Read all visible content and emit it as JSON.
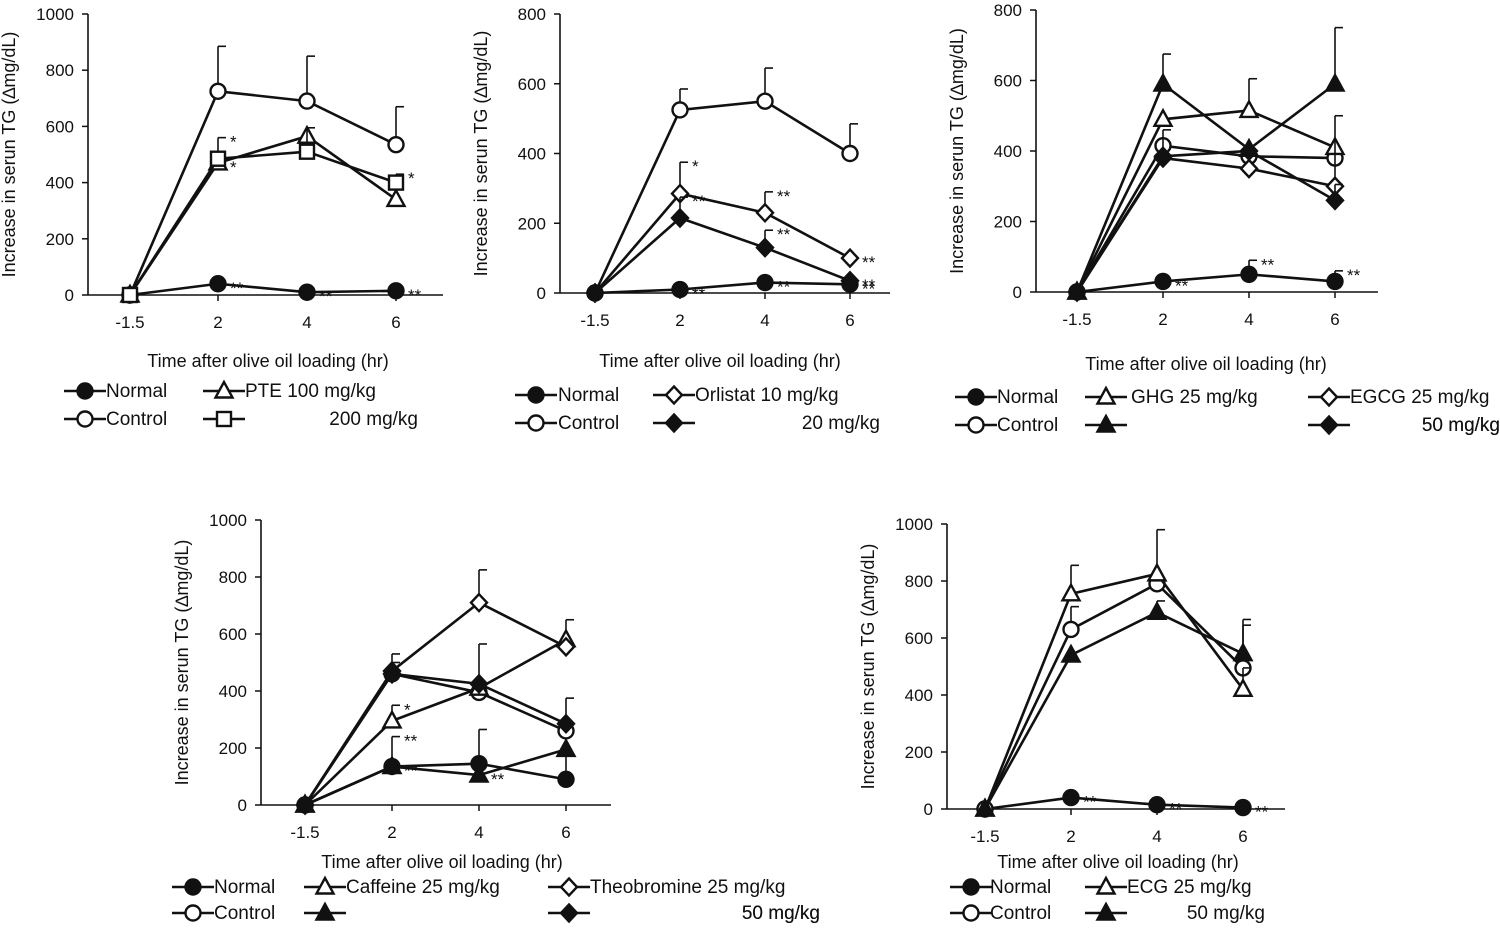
{
  "figure_title": "",
  "chart_data": [
    {
      "type": "line",
      "xlabel": "Time after olive oil loading (hr)",
      "ylabel": "Increase in serun TG (∆mg/dL)",
      "x_ticks": [
        "-1.5",
        "2",
        "4",
        "6"
      ],
      "y_ticks": [
        "0",
        "200",
        "400",
        "600",
        "800",
        "1000"
      ],
      "ylim": [
        0,
        1000
      ],
      "series": [
        {
          "name": "Normal",
          "marker": "filled-circle",
          "values": [
            0,
            40,
            10,
            15
          ],
          "errors": [
            0,
            0,
            0,
            0
          ],
          "sig": [
            "",
            "**",
            "**",
            "**"
          ]
        },
        {
          "name": "Control",
          "marker": "open-circle",
          "values": [
            0,
            725,
            690,
            535
          ],
          "errors": [
            0,
            160,
            160,
            135
          ],
          "sig": [
            "",
            "",
            "",
            ""
          ]
        },
        {
          "name": "PTE  100  mg/kg",
          "marker": "open-triangle",
          "values": [
            0,
            470,
            565,
            340
          ],
          "errors": [
            0,
            0,
            0,
            90
          ],
          "sig": [
            "",
            "*",
            "",
            "*"
          ]
        },
        {
          "name": "200 mg/kg",
          "marker": "open-square",
          "values": [
            0,
            485,
            510,
            400
          ],
          "errors": [
            0,
            75,
            85,
            0
          ],
          "sig": [
            "",
            "*",
            "",
            ""
          ]
        }
      ]
    },
    {
      "type": "line",
      "xlabel": "Time after olive oil loading (hr)",
      "ylabel": "Increase in serun TG (∆mg/dL)",
      "x_ticks": [
        "-1.5",
        "2",
        "4",
        "6"
      ],
      "y_ticks": [
        "0",
        "200",
        "400",
        "600",
        "800"
      ],
      "ylim": [
        0,
        800
      ],
      "series": [
        {
          "name": "Normal",
          "marker": "filled-circle",
          "values": [
            0,
            10,
            30,
            25
          ],
          "errors": [
            0,
            0,
            0,
            0
          ],
          "sig": [
            "",
            "**",
            "**",
            "**"
          ]
        },
        {
          "name": "Control",
          "marker": "open-circle",
          "values": [
            0,
            525,
            550,
            400
          ],
          "errors": [
            0,
            60,
            95,
            85
          ],
          "sig": [
            "",
            "",
            "",
            ""
          ]
        },
        {
          "name": "Orlistat 10 mg/kg",
          "marker": "open-diamond",
          "values": [
            0,
            285,
            230,
            100
          ],
          "errors": [
            0,
            90,
            60,
            0
          ],
          "sig": [
            "",
            "*",
            "**",
            "**"
          ]
        },
        {
          "name": "20 mg/kg",
          "marker": "filled-diamond",
          "values": [
            0,
            215,
            130,
            35
          ],
          "errors": [
            0,
            60,
            50,
            0
          ],
          "sig": [
            "",
            "**",
            "**",
            "**"
          ]
        }
      ]
    },
    {
      "type": "line",
      "xlabel": "Time after olive oil loading (hr)",
      "ylabel": "Increase in serun TG (∆mg/dL)",
      "x_ticks": [
        "-1.5",
        "2",
        "4",
        "6"
      ],
      "y_ticks": [
        "0",
        "200",
        "400",
        "600",
        "800"
      ],
      "ylim": [
        0,
        800
      ],
      "series": [
        {
          "name": "Normal",
          "marker": "filled-circle",
          "values": [
            0,
            30,
            50,
            30
          ],
          "errors": [
            0,
            0,
            40,
            30
          ],
          "sig": [
            "",
            "**",
            "**",
            "**"
          ]
        },
        {
          "name": "Control",
          "marker": "open-circle",
          "values": [
            0,
            415,
            385,
            380
          ],
          "errors": [
            0,
            0,
            0,
            0
          ],
          "sig": [
            "",
            "",
            "",
            ""
          ]
        },
        {
          "name": "GHG  25 mg/kg",
          "marker": "open-triangle",
          "values": [
            0,
            490,
            515,
            410
          ],
          "errors": [
            0,
            0,
            90,
            0
          ],
          "sig": [
            "",
            "",
            "",
            ""
          ]
        },
        {
          "name": "50 mg/kg",
          "marker": "filled-triangle",
          "values": [
            0,
            590,
            405,
            590
          ],
          "errors": [
            0,
            85,
            0,
            160
          ],
          "sig": [
            "",
            "",
            "",
            ""
          ]
        },
        {
          "name": "EGCG  25 mg/kg",
          "marker": "open-diamond",
          "values": [
            0,
            380,
            350,
            300
          ],
          "errors": [
            0,
            0,
            0,
            200
          ],
          "sig": [
            "",
            "",
            "",
            ""
          ]
        },
        {
          "name": "50 mg/kg",
          "marker": "filled-diamond",
          "values": [
            0,
            385,
            400,
            260
          ],
          "errors": [
            0,
            75,
            0,
            45
          ],
          "sig": [
            "",
            "",
            "",
            ""
          ]
        }
      ]
    },
    {
      "type": "line",
      "xlabel": "Time after olive oil loading (hr)",
      "ylabel": "Increase in serun TG (∆mg/dL)",
      "x_ticks": [
        "-1.5",
        "2",
        "4",
        "6"
      ],
      "y_ticks": [
        "0",
        "200",
        "400",
        "600",
        "800",
        "1000"
      ],
      "ylim": [
        0,
        1000
      ],
      "series": [
        {
          "name": "Normal",
          "marker": "filled-circle",
          "values": [
            0,
            135,
            145,
            90
          ],
          "errors": [
            0,
            0,
            120,
            90
          ],
          "sig": [
            "",
            "**",
            "",
            ""
          ]
        },
        {
          "name": "Control",
          "marker": "open-circle",
          "values": [
            0,
            460,
            395,
            260
          ],
          "errors": [
            0,
            0,
            170,
            115
          ],
          "sig": [
            "",
            "",
            "",
            ""
          ]
        },
        {
          "name": "Caffeine 25 mg/kg",
          "marker": "open-triangle",
          "values": [
            0,
            295,
            410,
            580
          ],
          "errors": [
            0,
            55,
            0,
            70
          ],
          "sig": [
            "",
            "*",
            "",
            ""
          ]
        },
        {
          "name": "50 mg/kg",
          "marker": "filled-triangle",
          "values": [
            0,
            135,
            105,
            195
          ],
          "errors": [
            0,
            105,
            0,
            0
          ],
          "sig": [
            "",
            "**",
            "**",
            ""
          ]
        },
        {
          "name": "Theobromine 25 mg/kg",
          "marker": "open-diamond",
          "values": [
            0,
            470,
            710,
            555
          ],
          "errors": [
            0,
            30,
            115,
            0
          ],
          "sig": [
            "",
            "",
            "",
            ""
          ]
        },
        {
          "name": "50 mg/kg",
          "marker": "filled-diamond",
          "values": [
            0,
            460,
            425,
            285
          ],
          "errors": [
            0,
            70,
            0,
            0
          ],
          "sig": [
            "",
            "",
            "",
            ""
          ]
        }
      ]
    },
    {
      "type": "line",
      "xlabel": "Time after olive oil loading (hr)",
      "ylabel": "Increase in serun TG (∆mg/dL)",
      "x_ticks": [
        "-1.5",
        "2",
        "4",
        "6"
      ],
      "y_ticks": [
        "0",
        "200",
        "400",
        "600",
        "800",
        "1000"
      ],
      "ylim": [
        0,
        1000
      ],
      "series": [
        {
          "name": "Normal",
          "marker": "filled-circle",
          "values": [
            0,
            40,
            15,
            5
          ],
          "errors": [
            0,
            0,
            0,
            0
          ],
          "sig": [
            "",
            "**",
            "**",
            "**"
          ]
        },
        {
          "name": "Control",
          "marker": "open-circle",
          "values": [
            0,
            630,
            790,
            495
          ],
          "errors": [
            0,
            80,
            0,
            150
          ],
          "sig": [
            "",
            "",
            "",
            ""
          ]
        },
        {
          "name": "ECG 25 mg/kg",
          "marker": "open-triangle",
          "values": [
            0,
            755,
            825,
            420
          ],
          "errors": [
            0,
            100,
            155,
            75
          ],
          "sig": [
            "",
            "",
            "",
            ""
          ]
        },
        {
          "name": "50 mg/kg",
          "marker": "filled-triangle",
          "values": [
            0,
            540,
            690,
            545
          ],
          "errors": [
            0,
            0,
            40,
            120
          ],
          "sig": [
            "",
            "",
            "",
            ""
          ]
        }
      ]
    }
  ]
}
